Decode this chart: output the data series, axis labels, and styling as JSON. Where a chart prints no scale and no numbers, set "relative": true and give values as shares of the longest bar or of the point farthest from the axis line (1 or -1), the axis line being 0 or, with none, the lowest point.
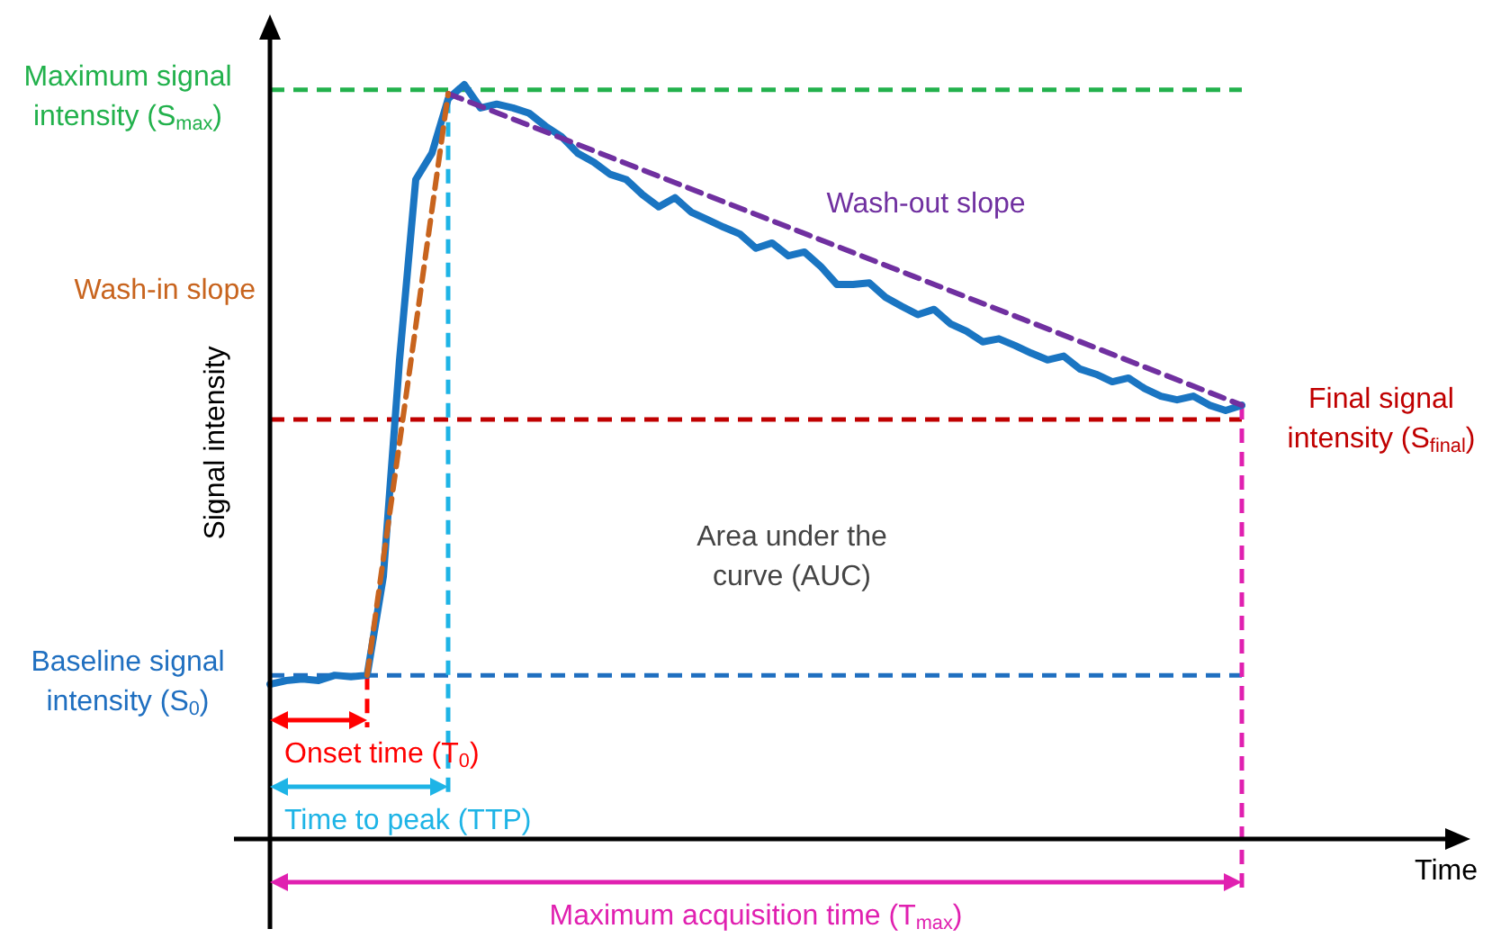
{
  "chart_data": {
    "type": "line",
    "relative": true,
    "ylabel": "Signal intensity",
    "legend": false,
    "marker": "none",
    "categories": [
      null,
      null,
      null,
      null,
      null,
      null,
      null,
      null,
      null,
      null,
      null,
      null,
      null,
      null,
      null,
      null,
      null,
      null,
      null,
      null,
      null,
      null,
      null,
      null,
      null,
      null,
      null,
      null,
      null,
      null,
      null,
      null,
      null,
      null,
      null,
      null,
      null,
      null,
      null,
      null,
      null,
      null,
      null,
      null,
      null,
      null,
      null,
      null,
      null,
      null,
      null,
      null,
      null,
      null,
      null,
      null,
      null,
      null,
      null,
      null,
      null
    ],
    "series": [
      {
        "color": "#1a75c2",
        "values": [
          0.205,
          0.21,
          0.212,
          0.21,
          0.217,
          0.215,
          0.217,
          0.348,
          0.635,
          0.874,
          0.909,
          0.981,
          1,
          0.969,
          0.974,
          0.969,
          0.962,
          0.945,
          0.931,
          0.909,
          0.897,
          0.881,
          0.874,
          0.854,
          0.838,
          0.85,
          0.831,
          0.821,
          0.811,
          0.802,
          0.783,
          0.79,
          0.773,
          0.778,
          0.759,
          0.735,
          0.735,
          0.737,
          0.718,
          0.706,
          0.695,
          0.702,
          0.683,
          0.673,
          0.659,
          0.663,
          0.654,
          0.644,
          0.635,
          0.64,
          0.623,
          0.616,
          0.606,
          0.611,
          0.597,
          0.587,
          0.582,
          0.587,
          0.575,
          0.568,
          0.575
        ]
      },
      {
        "name": "Wash-in slope",
        "line_style": "dashed",
        "color": "#c8641e",
        "values": [
          null,
          null,
          null,
          null,
          null,
          null,
          0.217,
          null,
          null,
          null,
          null,
          0.988,
          null,
          null,
          null,
          null,
          null,
          null,
          null,
          null,
          null,
          null,
          null,
          null,
          null,
          null,
          null,
          null,
          null,
          null,
          null,
          null,
          null,
          null,
          null,
          null,
          null,
          null,
          null,
          null,
          null,
          null,
          null,
          null,
          null,
          null,
          null,
          null,
          null,
          null,
          null,
          null,
          null,
          null,
          null,
          null,
          null,
          null,
          null,
          null,
          null
        ]
      },
      {
        "name": "Wash-out slope",
        "line_style": "dashed",
        "color": "#7030a0",
        "values": [
          null,
          null,
          null,
          null,
          null,
          null,
          null,
          null,
          null,
          null,
          null,
          0.988,
          null,
          null,
          null,
          null,
          null,
          null,
          null,
          null,
          null,
          null,
          null,
          null,
          null,
          null,
          null,
          null,
          null,
          null,
          null,
          null,
          null,
          null,
          null,
          null,
          null,
          null,
          null,
          null,
          null,
          null,
          null,
          null,
          null,
          null,
          null,
          null,
          null,
          null,
          null,
          null,
          null,
          null,
          null,
          null,
          null,
          null,
          null,
          null,
          0.575
        ]
      }
    ],
    "ref_lines": [
      {
        "axis": "y",
        "value": 0.993,
        "label": "Maximum signal intensity (S$_{max}$)",
        "color": "#22b14c",
        "line_style": "dashed"
      },
      {
        "axis": "y",
        "value": 0.556,
        "label": "Final signal intensity (S$_{final}$)",
        "color": "#c00000",
        "line_style": "dashed"
      },
      {
        "axis": "y",
        "value": 0.217,
        "label": "Baseline signal intensity (S$_{0}$)",
        "color": "#1f6fc0",
        "line_style": "dashed"
      }
    ],
    "annotations": [
      "Area under the curve (AUC)",
      "Onset time (T$_{0}$)",
      "Time to peak (TTP)",
      "Maximum acquisition time (T$_{max}$)",
      "Time"
    ]
  }
}
